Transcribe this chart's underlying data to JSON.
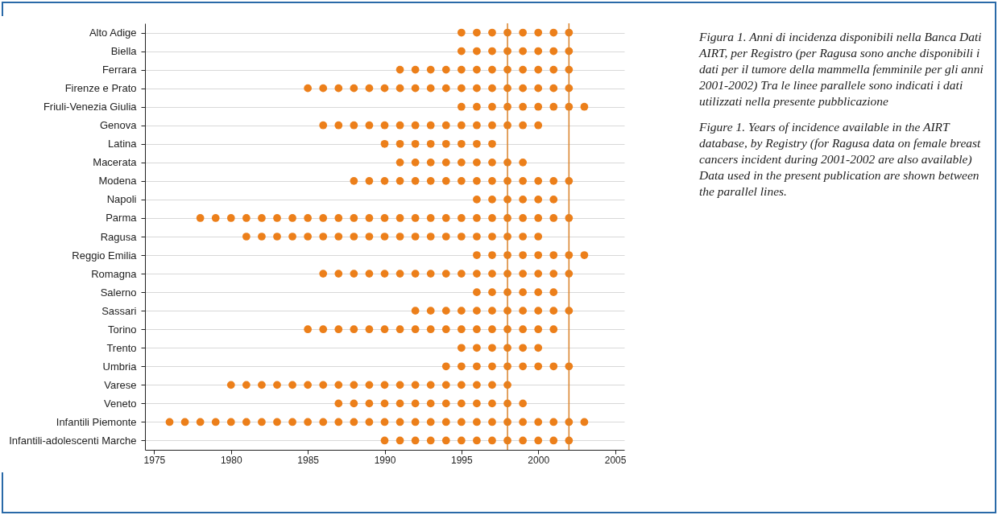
{
  "chart_data": {
    "type": "scatter",
    "orientation": "horizontal",
    "marker": "circle",
    "grid": "y",
    "legend": false,
    "categories": [
      "Alto Adige",
      "Biella",
      "Ferrara",
      "Firenze e Prato",
      "Friuli-Venezia Giulia",
      "Genova",
      "Latina",
      "Macerata",
      "Modena",
      "Napoli",
      "Parma",
      "Ragusa",
      "Reggio Emilia",
      "Romagna",
      "Salerno",
      "Sassari",
      "Torino",
      "Trento",
      "Umbria",
      "Varese",
      "Veneto",
      "Infantili Piemonte",
      "Infantili-adolescenti Marche"
    ],
    "xlim": [
      1974.4,
      2005.6
    ],
    "xticks": [
      1975,
      1980,
      1985,
      1990,
      1995,
      2000,
      2005
    ],
    "series": [
      {
        "color": "#ec7f1a",
        "values": [
          1995,
          1996,
          1997,
          1998,
          1999,
          2000,
          2001,
          2002
        ],
        "x": [
          "Alto Adige",
          "Alto Adige",
          "Alto Adige",
          "Alto Adige",
          "Alto Adige",
          "Alto Adige",
          "Alto Adige",
          "Alto Adige"
        ]
      },
      {
        "color": "#ec7f1a",
        "values": [
          1995,
          1996,
          1997,
          1998,
          1999,
          2000,
          2001,
          2002
        ],
        "x": [
          "Biella",
          "Biella",
          "Biella",
          "Biella",
          "Biella",
          "Biella",
          "Biella",
          "Biella"
        ]
      },
      {
        "color": "#ec7f1a",
        "values": [
          1991,
          1992,
          1993,
          1994,
          1995,
          1996,
          1997,
          1998,
          1999,
          2000,
          2001,
          2002
        ],
        "x": [
          "Ferrara",
          "Ferrara",
          "Ferrara",
          "Ferrara",
          "Ferrara",
          "Ferrara",
          "Ferrara",
          "Ferrara",
          "Ferrara",
          "Ferrara",
          "Ferrara",
          "Ferrara"
        ]
      },
      {
        "color": "#ec7f1a",
        "values": [
          1985,
          1986,
          1987,
          1988,
          1989,
          1990,
          1991,
          1992,
          1993,
          1994,
          1995,
          1996,
          1997,
          1998,
          1999,
          2000,
          2001,
          2002
        ],
        "x": [
          "Firenze e Prato",
          "Firenze e Prato",
          "Firenze e Prato",
          "Firenze e Prato",
          "Firenze e Prato",
          "Firenze e Prato",
          "Firenze e Prato",
          "Firenze e Prato",
          "Firenze e Prato",
          "Firenze e Prato",
          "Firenze e Prato",
          "Firenze e Prato",
          "Firenze e Prato",
          "Firenze e Prato",
          "Firenze e Prato",
          "Firenze e Prato",
          "Firenze e Prato",
          "Firenze e Prato"
        ]
      },
      {
        "color": "#ec7f1a",
        "values": [
          1995,
          1996,
          1997,
          1998,
          1999,
          2000,
          2001,
          2002,
          2003
        ],
        "x": [
          "Friuli-Venezia Giulia",
          "Friuli-Venezia Giulia",
          "Friuli-Venezia Giulia",
          "Friuli-Venezia Giulia",
          "Friuli-Venezia Giulia",
          "Friuli-Venezia Giulia",
          "Friuli-Venezia Giulia",
          "Friuli-Venezia Giulia",
          "Friuli-Venezia Giulia"
        ]
      },
      {
        "color": "#ec7f1a",
        "values": [
          1986,
          1987,
          1988,
          1989,
          1990,
          1991,
          1992,
          1993,
          1994,
          1995,
          1996,
          1997,
          1998,
          1999,
          2000
        ],
        "x": [
          "Genova",
          "Genova",
          "Genova",
          "Genova",
          "Genova",
          "Genova",
          "Genova",
          "Genova",
          "Genova",
          "Genova",
          "Genova",
          "Genova",
          "Genova",
          "Genova",
          "Genova"
        ]
      },
      {
        "color": "#ec7f1a",
        "values": [
          1990,
          1991,
          1992,
          1993,
          1994,
          1995,
          1996,
          1997
        ],
        "x": [
          "Latina",
          "Latina",
          "Latina",
          "Latina",
          "Latina",
          "Latina",
          "Latina",
          "Latina"
        ]
      },
      {
        "color": "#ec7f1a",
        "values": [
          1991,
          1992,
          1993,
          1994,
          1995,
          1996,
          1997,
          1998,
          1999
        ],
        "x": [
          "Macerata",
          "Macerata",
          "Macerata",
          "Macerata",
          "Macerata",
          "Macerata",
          "Macerata",
          "Macerata",
          "Macerata"
        ]
      },
      {
        "color": "#ec7f1a",
        "values": [
          1988,
          1989,
          1990,
          1991,
          1992,
          1993,
          1994,
          1995,
          1996,
          1997,
          1998,
          1999,
          2000,
          2001,
          2002
        ],
        "x": [
          "Modena",
          "Modena",
          "Modena",
          "Modena",
          "Modena",
          "Modena",
          "Modena",
          "Modena",
          "Modena",
          "Modena",
          "Modena",
          "Modena",
          "Modena",
          "Modena",
          "Modena"
        ]
      },
      {
        "color": "#ec7f1a",
        "values": [
          1996,
          1997,
          1998,
          1999,
          2000,
          2001
        ],
        "x": [
          "Napoli",
          "Napoli",
          "Napoli",
          "Napoli",
          "Napoli",
          "Napoli"
        ]
      },
      {
        "color": "#ec7f1a",
        "values": [
          1978,
          1979,
          1980,
          1981,
          1982,
          1983,
          1984,
          1985,
          1986,
          1987,
          1988,
          1989,
          1990,
          1991,
          1992,
          1993,
          1994,
          1995,
          1996,
          1997,
          1998,
          1999,
          2000,
          2001,
          2002
        ],
        "x": [
          "Parma",
          "Parma",
          "Parma",
          "Parma",
          "Parma",
          "Parma",
          "Parma",
          "Parma",
          "Parma",
          "Parma",
          "Parma",
          "Parma",
          "Parma",
          "Parma",
          "Parma",
          "Parma",
          "Parma",
          "Parma",
          "Parma",
          "Parma",
          "Parma",
          "Parma",
          "Parma",
          "Parma",
          "Parma"
        ]
      },
      {
        "color": "#ec7f1a",
        "values": [
          1981,
          1982,
          1983,
          1984,
          1985,
          1986,
          1987,
          1988,
          1989,
          1990,
          1991,
          1992,
          1993,
          1994,
          1995,
          1996,
          1997,
          1998,
          1999,
          2000
        ],
        "x": [
          "Ragusa",
          "Ragusa",
          "Ragusa",
          "Ragusa",
          "Ragusa",
          "Ragusa",
          "Ragusa",
          "Ragusa",
          "Ragusa",
          "Ragusa",
          "Ragusa",
          "Ragusa",
          "Ragusa",
          "Ragusa",
          "Ragusa",
          "Ragusa",
          "Ragusa",
          "Ragusa",
          "Ragusa",
          "Ragusa"
        ]
      },
      {
        "color": "#ec7f1a",
        "values": [
          1996,
          1997,
          1998,
          1999,
          2000,
          2001,
          2002,
          2003
        ],
        "x": [
          "Reggio Emilia",
          "Reggio Emilia",
          "Reggio Emilia",
          "Reggio Emilia",
          "Reggio Emilia",
          "Reggio Emilia",
          "Reggio Emilia",
          "Reggio Emilia"
        ]
      },
      {
        "color": "#ec7f1a",
        "values": [
          1986,
          1987,
          1988,
          1989,
          1990,
          1991,
          1992,
          1993,
          1994,
          1995,
          1996,
          1997,
          1998,
          1999,
          2000,
          2001,
          2002
        ],
        "x": [
          "Romagna",
          "Romagna",
          "Romagna",
          "Romagna",
          "Romagna",
          "Romagna",
          "Romagna",
          "Romagna",
          "Romagna",
          "Romagna",
          "Romagna",
          "Romagna",
          "Romagna",
          "Romagna",
          "Romagna",
          "Romagna",
          "Romagna"
        ]
      },
      {
        "color": "#ec7f1a",
        "values": [
          1996,
          1997,
          1998,
          1999,
          2000,
          2001
        ],
        "x": [
          "Salerno",
          "Salerno",
          "Salerno",
          "Salerno",
          "Salerno",
          "Salerno"
        ]
      },
      {
        "color": "#ec7f1a",
        "values": [
          1992,
          1993,
          1994,
          1995,
          1996,
          1997,
          1998,
          1999,
          2000,
          2001,
          2002
        ],
        "x": [
          "Sassari",
          "Sassari",
          "Sassari",
          "Sassari",
          "Sassari",
          "Sassari",
          "Sassari",
          "Sassari",
          "Sassari",
          "Sassari",
          "Sassari"
        ]
      },
      {
        "color": "#ec7f1a",
        "values": [
          1985,
          1986,
          1987,
          1988,
          1989,
          1990,
          1991,
          1992,
          1993,
          1994,
          1995,
          1996,
          1997,
          1998,
          1999,
          2000,
          2001
        ],
        "x": [
          "Torino",
          "Torino",
          "Torino",
          "Torino",
          "Torino",
          "Torino",
          "Torino",
          "Torino",
          "Torino",
          "Torino",
          "Torino",
          "Torino",
          "Torino",
          "Torino",
          "Torino",
          "Torino",
          "Torino"
        ]
      },
      {
        "color": "#ec7f1a",
        "values": [
          1995,
          1996,
          1997,
          1998,
          1999,
          2000
        ],
        "x": [
          "Trento",
          "Trento",
          "Trento",
          "Trento",
          "Trento",
          "Trento"
        ]
      },
      {
        "color": "#ec7f1a",
        "values": [
          1994,
          1995,
          1996,
          1997,
          1998,
          1999,
          2000,
          2001,
          2002
        ],
        "x": [
          "Umbria",
          "Umbria",
          "Umbria",
          "Umbria",
          "Umbria",
          "Umbria",
          "Umbria",
          "Umbria",
          "Umbria"
        ]
      },
      {
        "color": "#ec7f1a",
        "values": [
          1980,
          1981,
          1982,
          1983,
          1984,
          1985,
          1986,
          1987,
          1988,
          1989,
          1990,
          1991,
          1992,
          1993,
          1994,
          1995,
          1996,
          1997,
          1998
        ],
        "x": [
          "Varese",
          "Varese",
          "Varese",
          "Varese",
          "Varese",
          "Varese",
          "Varese",
          "Varese",
          "Varese",
          "Varese",
          "Varese",
          "Varese",
          "Varese",
          "Varese",
          "Varese",
          "Varese",
          "Varese",
          "Varese",
          "Varese"
        ]
      },
      {
        "color": "#ec7f1a",
        "values": [
          1987,
          1988,
          1989,
          1990,
          1991,
          1992,
          1993,
          1994,
          1995,
          1996,
          1997,
          1998,
          1999
        ],
        "x": [
          "Veneto",
          "Veneto",
          "Veneto",
          "Veneto",
          "Veneto",
          "Veneto",
          "Veneto",
          "Veneto",
          "Veneto",
          "Veneto",
          "Veneto",
          "Veneto",
          "Veneto"
        ]
      },
      {
        "color": "#ec7f1a",
        "values": [
          1976,
          1977,
          1978,
          1979,
          1980,
          1981,
          1982,
          1983,
          1984,
          1985,
          1986,
          1987,
          1988,
          1989,
          1990,
          1991,
          1992,
          1993,
          1994,
          1995,
          1996,
          1997,
          1998,
          1999,
          2000,
          2001,
          2002,
          2003
        ],
        "x": [
          "Infantili Piemonte",
          "Infantili Piemonte",
          "Infantili Piemonte",
          "Infantili Piemonte",
          "Infantili Piemonte",
          "Infantili Piemonte",
          "Infantili Piemonte",
          "Infantili Piemonte",
          "Infantili Piemonte",
          "Infantili Piemonte",
          "Infantili Piemonte",
          "Infantili Piemonte",
          "Infantili Piemonte",
          "Infantili Piemonte",
          "Infantili Piemonte",
          "Infantili Piemonte",
          "Infantili Piemonte",
          "Infantili Piemonte",
          "Infantili Piemonte",
          "Infantili Piemonte",
          "Infantili Piemonte",
          "Infantili Piemonte",
          "Infantili Piemonte",
          "Infantili Piemonte",
          "Infantili Piemonte",
          "Infantili Piemonte",
          "Infantili Piemonte",
          "Infantili Piemonte"
        ]
      },
      {
        "color": "#ec7f1a",
        "values": [
          1990,
          1991,
          1992,
          1993,
          1994,
          1995,
          1996,
          1997,
          1998,
          1999,
          2000,
          2001,
          2002
        ],
        "x": [
          "Infantili-adolescenti Marche",
          "Infantili-adolescenti Marche",
          "Infantili-adolescenti Marche",
          "Infantili-adolescenti Marche",
          "Infantili-adolescenti Marche",
          "Infantili-adolescenti Marche",
          "Infantili-adolescenti Marche",
          "Infantili-adolescenti Marche",
          "Infantili-adolescenti Marche",
          "Infantili-adolescenti Marche",
          "Infantili-adolescenti Marche",
          "Infantili-adolescenti Marche",
          "Infantili-adolescenti Marche"
        ]
      }
    ],
    "ref_lines": [
      {
        "axis": "x",
        "value": 1998,
        "color": "#d9832b"
      },
      {
        "axis": "x",
        "value": 2002,
        "color": "#d9832b"
      }
    ],
    "annotations": [
      "Figura 1. Anni di incidenza disponibili nella Banca Dati AIRT, per Registro (per Ragusa sono anche disponibili i dati per il tumore della mammella femminile per gli anni 2001-2002) Tra le linee parallele sono indicati i dati utilizzati nella presente pubblicazione",
      "Figure 1. Years of incidence available in the AIRT database, by Registry (for Ragusa data on female breast cancers incident during 2001-2002 are also available) Data used in the present publication are shown between the parallel lines."
    ]
  }
}
